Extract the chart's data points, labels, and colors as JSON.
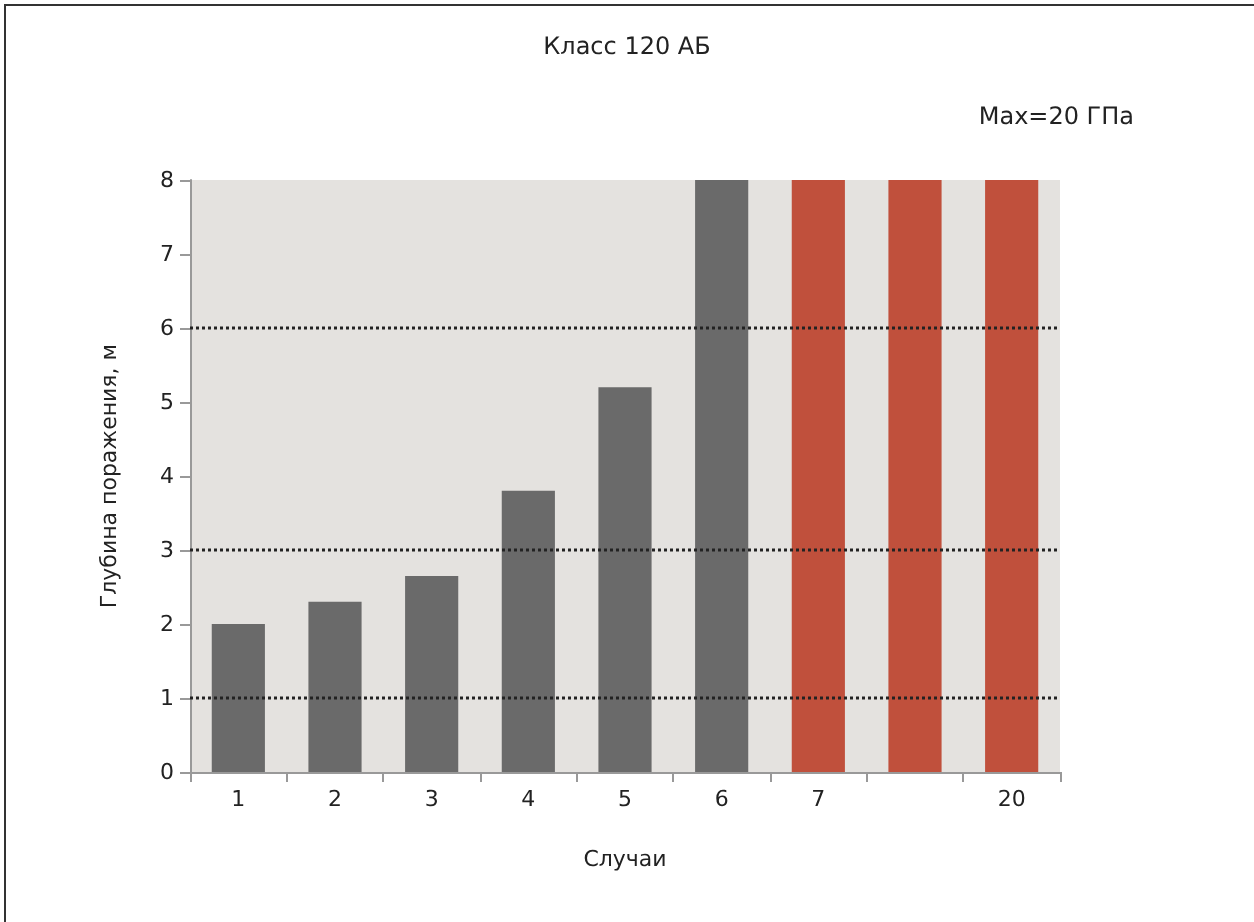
{
  "chart_data": {
    "type": "bar",
    "title": "Класс 120 АБ",
    "xlabel": "Случаи",
    "ylabel": "Глубина поражения, м",
    "categories": [
      "1",
      "2",
      "3",
      "4",
      "5",
      "6",
      "7",
      null,
      "20"
    ],
    "values": [
      2,
      2.3,
      2.65,
      3.8,
      5.2,
      8,
      8,
      8,
      8
    ],
    "colors": [
      "#6a6a6a",
      "#6a6a6a",
      "#6a6a6a",
      "#6a6a6a",
      "#6a6a6a",
      "#6a6a6a",
      "#c0503c",
      "#c0503c",
      "#c0503c"
    ],
    "ylim": [
      0,
      8
    ],
    "yticks": [
      0,
      1,
      2,
      3,
      4,
      5,
      6,
      7,
      8
    ],
    "grid": false,
    "ref_lines": [
      {
        "axis": "y",
        "value": 1,
        "color": "#222222",
        "line_style": "dotted"
      },
      {
        "axis": "y",
        "value": 3,
        "color": "#222222",
        "line_style": "dotted"
      },
      {
        "axis": "y",
        "value": 6,
        "color": "#222222",
        "line_style": "dotted"
      }
    ],
    "annotations": [
      "Max=20 ГПа"
    ]
  }
}
